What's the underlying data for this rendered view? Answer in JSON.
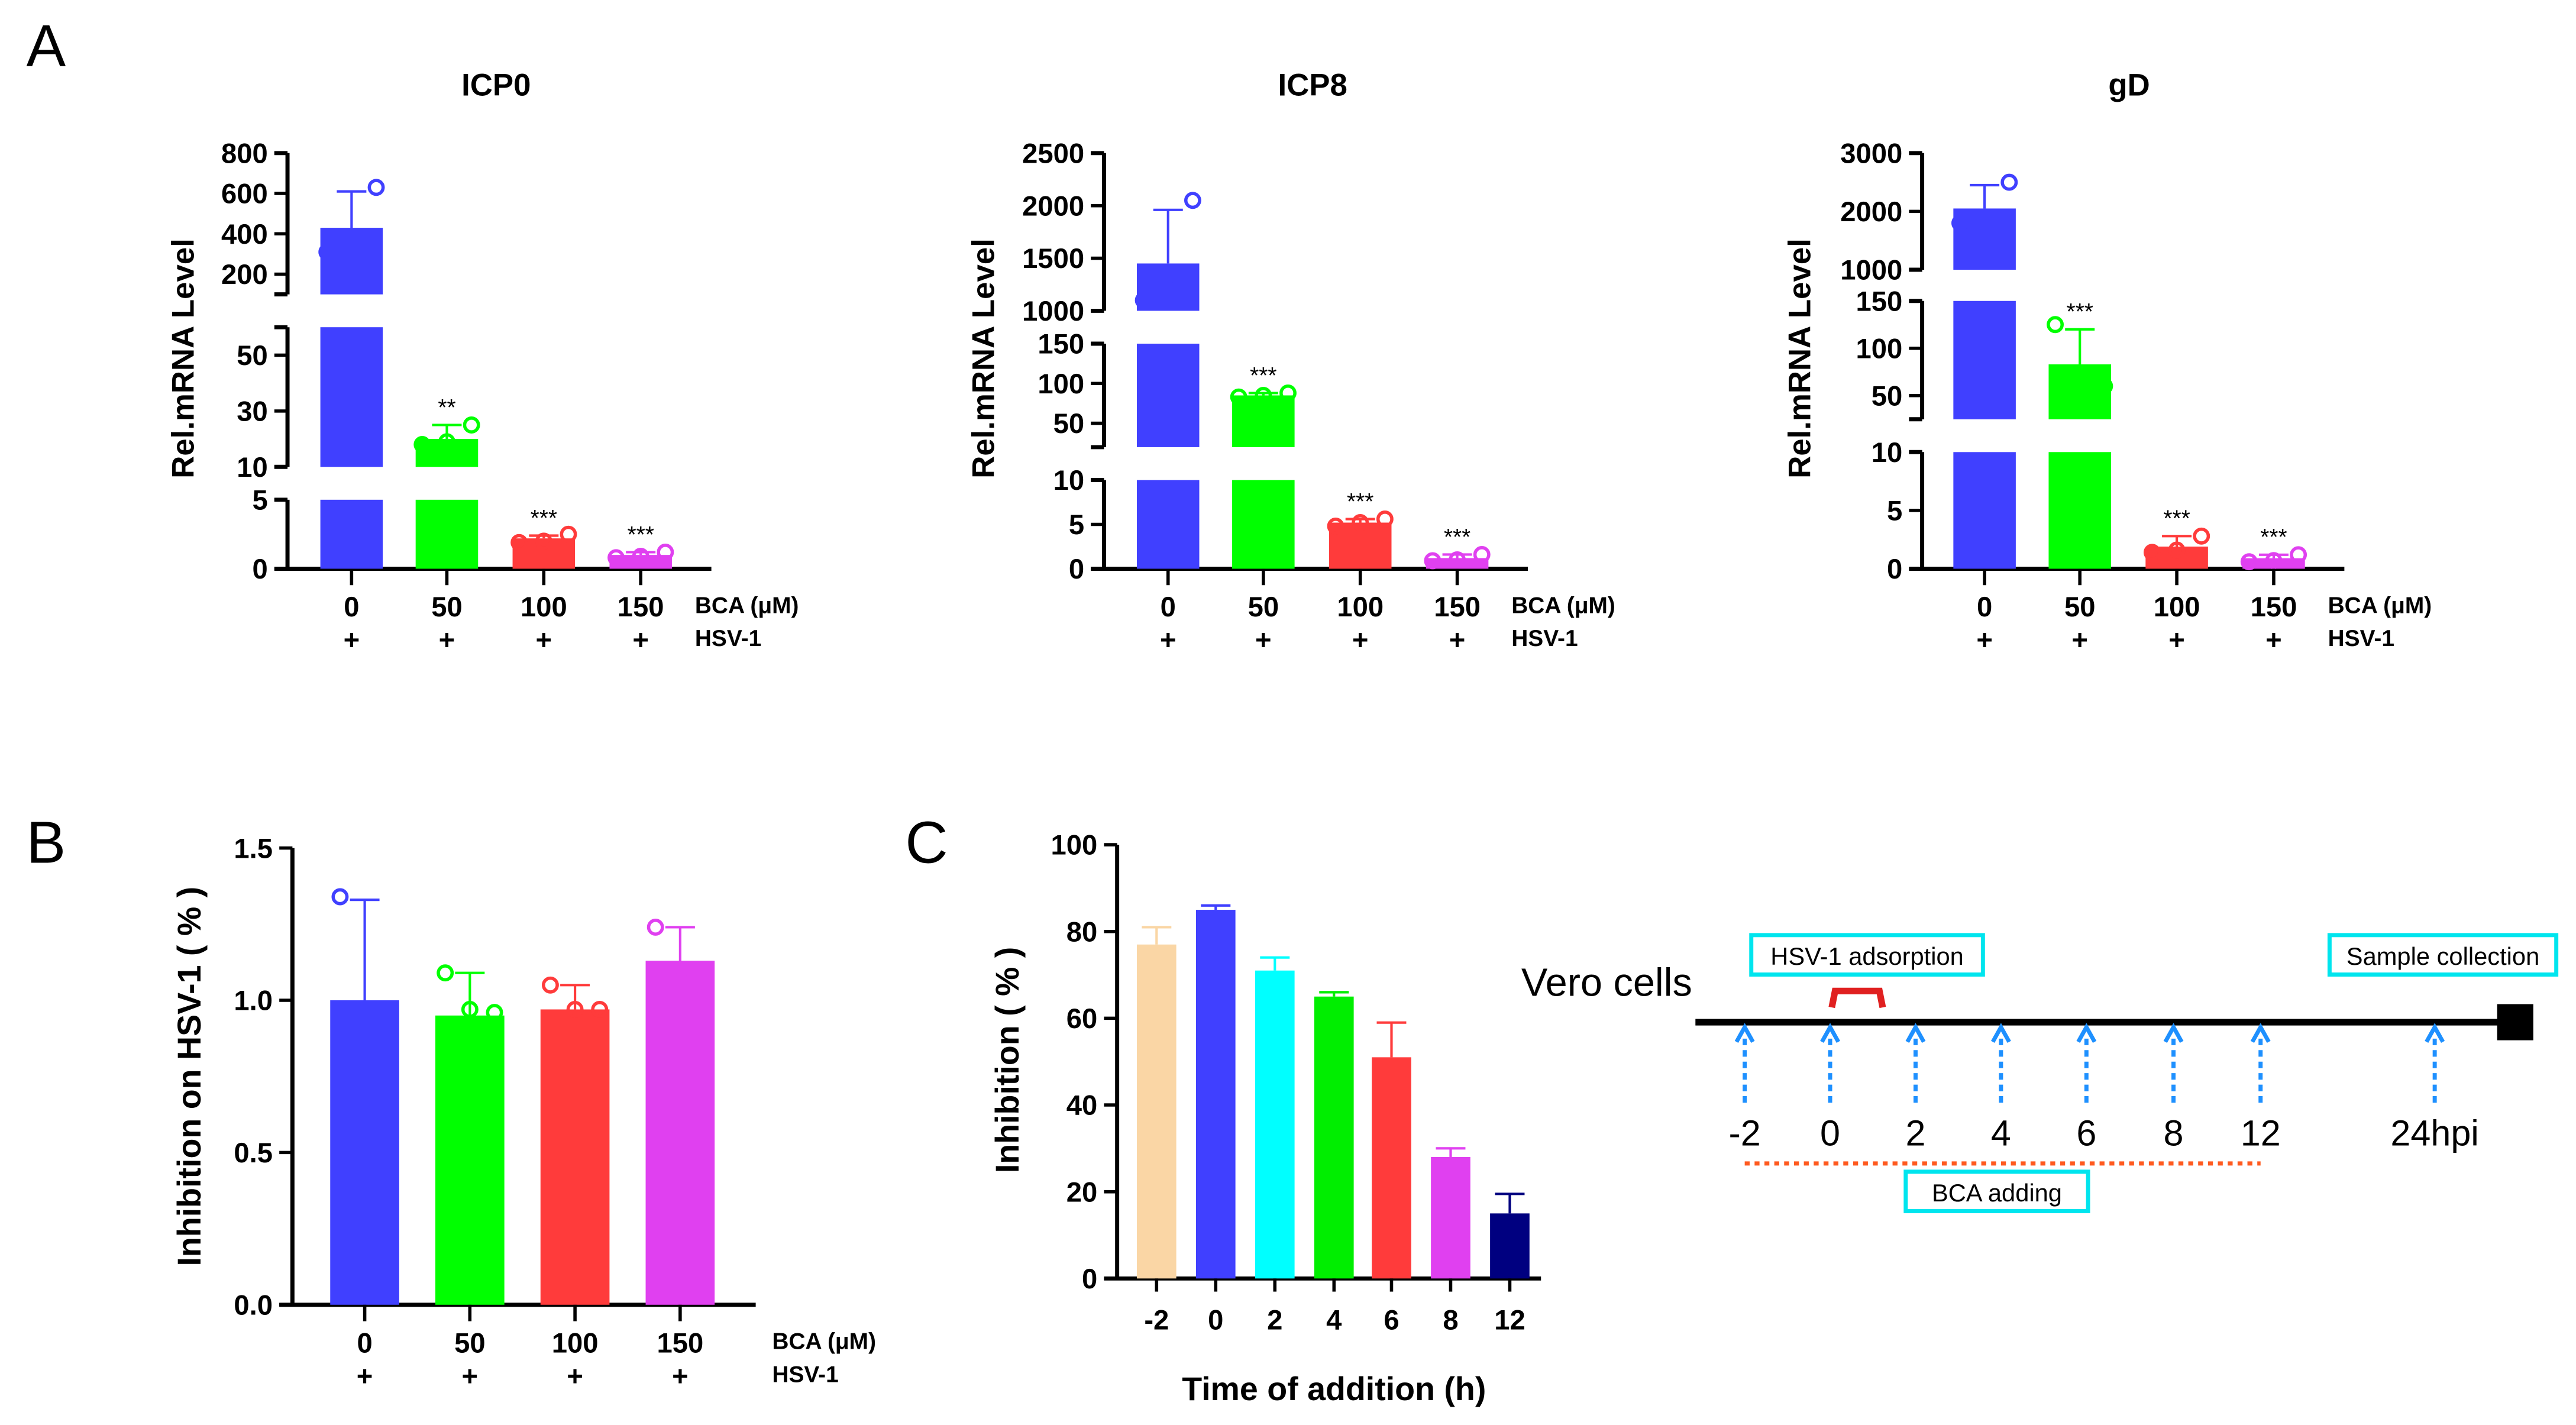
{
  "panel_labels": {
    "A": "A",
    "B": "B",
    "C": "C"
  },
  "chart_data": [
    {
      "id": "icp0",
      "type": "bar",
      "title": "ICP0",
      "ylabel": "Rel.mRNA Level",
      "categories": [
        "0",
        "50",
        "100",
        "150"
      ],
      "row2": [
        "+",
        "+",
        "+",
        "+"
      ],
      "xlabel_rows": [
        "BCA (μM)",
        "HSV-1"
      ],
      "colors": [
        "#4040FF",
        "#00FF00",
        "#FF3B3B",
        "#E040F0"
      ],
      "values": [
        430,
        20,
        2.2,
        1.0
      ],
      "sd_top": [
        610,
        25,
        2.4,
        1.2
      ],
      "points": [
        [
          310,
          340,
          630
        ],
        [
          18,
          19,
          25
        ],
        [
          1.9,
          2.0,
          2.5
        ],
        [
          0.8,
          0.9,
          1.2
        ]
      ],
      "signif": [
        "",
        "**",
        "***",
        "***"
      ],
      "axis_segments": [
        {
          "range": [
            0,
            5
          ],
          "ticks": [
            "0",
            "5"
          ]
        },
        {
          "range": [
            10,
            60
          ],
          "ticks": [
            "10",
            "30",
            "50"
          ]
        },
        {
          "range": [
            100,
            800
          ],
          "ticks": [
            "200",
            "400",
            "600",
            "800"
          ]
        }
      ]
    },
    {
      "id": "icp8",
      "type": "bar",
      "title": "ICP8",
      "ylabel": "Rel.mRNA Level",
      "categories": [
        "0",
        "50",
        "100",
        "150"
      ],
      "row2": [
        "+",
        "+",
        "+",
        "+"
      ],
      "xlabel_rows": [
        "BCA (μM)",
        "HSV-1"
      ],
      "colors": [
        "#4040FF",
        "#00FF00",
        "#FF3B3B",
        "#E040F0"
      ],
      "values": [
        1450,
        85,
        5.2,
        1.2
      ],
      "sd_top": [
        1960,
        88,
        5.6,
        1.6
      ],
      "points": [
        [
          1100,
          1200,
          2050
        ],
        [
          83,
          85,
          88
        ],
        [
          4.8,
          5.2,
          5.6
        ],
        [
          0.9,
          1.0,
          1.6
        ]
      ],
      "signif": [
        "",
        "***",
        "***",
        "***"
      ],
      "axis_segments": [
        {
          "range": [
            0,
            10
          ],
          "ticks": [
            "0",
            "5",
            "10"
          ]
        },
        {
          "range": [
            20,
            150
          ],
          "ticks": [
            "50",
            "100",
            "150"
          ]
        },
        {
          "range": [
            1000,
            2500
          ],
          "ticks": [
            "1000",
            "1500",
            "2000",
            "2500"
          ]
        }
      ]
    },
    {
      "id": "gd",
      "type": "bar",
      "title": "gD",
      "ylabel": "Rel.mRNA Level",
      "categories": [
        "0",
        "50",
        "100",
        "150"
      ],
      "row2": [
        "+",
        "+",
        "+",
        "+"
      ],
      "xlabel_rows": [
        "BCA (μM)",
        "HSV-1"
      ],
      "colors": [
        "#4040FF",
        "#00FF00",
        "#FF3B3B",
        "#E040F0"
      ],
      "values": [
        2050,
        83,
        1.9,
        0.9
      ],
      "sd_top": [
        2450,
        120,
        2.8,
        1.2
      ],
      "points": [
        [
          1800,
          1900,
          2500
        ],
        [
          125,
          60,
          60
        ],
        [
          1.4,
          1.6,
          2.8
        ],
        [
          0.6,
          0.7,
          1.2
        ]
      ],
      "signif": [
        "",
        "***",
        "***",
        "***"
      ],
      "axis_segments": [
        {
          "range": [
            0,
            10
          ],
          "ticks": [
            "0",
            "5",
            "10"
          ]
        },
        {
          "range": [
            25,
            150
          ],
          "ticks": [
            "50",
            "100",
            "150"
          ]
        },
        {
          "range": [
            1000,
            3000
          ],
          "ticks": [
            "1000",
            "2000",
            "3000"
          ]
        }
      ]
    },
    {
      "id": "b",
      "type": "bar",
      "title": "",
      "ylabel": "Inhibition on HSV-1 ( % )",
      "categories": [
        "0",
        "50",
        "100",
        "150"
      ],
      "row2": [
        "+",
        "+",
        "+",
        "+"
      ],
      "xlabel_rows": [
        "BCA (μM)",
        "HSV-1"
      ],
      "colors": [
        "#4040FF",
        "#00FF00",
        "#FF3B3B",
        "#E040F0"
      ],
      "values": [
        1.0,
        0.95,
        0.97,
        1.13
      ],
      "sd_top": [
        1.33,
        1.09,
        1.05,
        1.24
      ],
      "points": [
        [
          1.34,
          0.97,
          0.7
        ],
        [
          1.09,
          0.97,
          0.96
        ],
        [
          1.05,
          0.97,
          0.97
        ],
        [
          1.24,
          1.1,
          1.01
        ]
      ],
      "ylim": [
        0,
        1.5
      ],
      "yticks": [
        "0.0",
        "0.5",
        "1.0",
        "1.5"
      ]
    },
    {
      "id": "c",
      "type": "bar",
      "title": "",
      "ylabel": "Inhibition ( % )",
      "xlabel": "Time of addition (h)",
      "categories": [
        "-2",
        "0",
        "2",
        "4",
        "6",
        "8",
        "12"
      ],
      "colors": [
        "#FAD6A5",
        "#4040FF",
        "#00FFFF",
        "#00EE00",
        "#FF3B3B",
        "#E040F0",
        "#000080"
      ],
      "values": [
        77,
        85,
        71,
        65,
        51,
        28,
        15
      ],
      "sd_top": [
        81,
        86,
        74,
        66,
        59,
        30,
        19.5
      ],
      "ylim": [
        0,
        100
      ],
      "yticks": [
        "0",
        "20",
        "40",
        "60",
        "80",
        "100"
      ]
    }
  ],
  "timeline": {
    "cell_label": "Vero cells",
    "adsorption_label": "HSV-1 adsorption",
    "collection_label": "Sample collection",
    "adding_label": "BCA adding",
    "time_labels": [
      "-2",
      "0",
      "2",
      "4",
      "6",
      "8",
      "12",
      "24hpi"
    ],
    "colors": {
      "box": "#00E5EE",
      "arrow": "#1E90FF",
      "bracket": "#E02020",
      "dash": "#FF5A1F"
    }
  }
}
